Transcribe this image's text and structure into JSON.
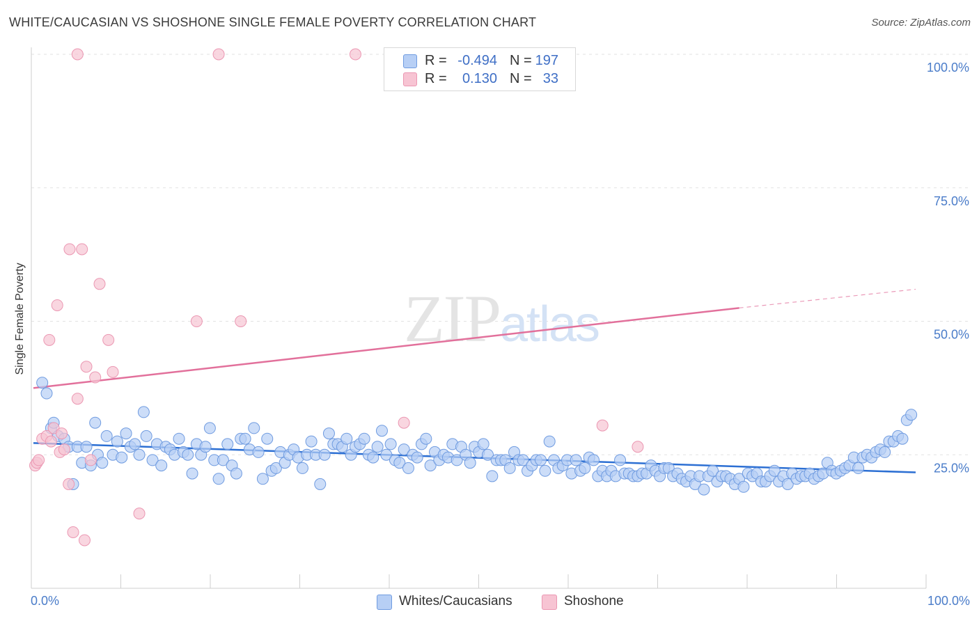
{
  "chart_data": {
    "type": "scatter",
    "title": "WHITE/CAUCASIAN VS SHOSHONE SINGLE FEMALE POVERTY CORRELATION CHART",
    "source": "Source: ZipAtlas.com",
    "xlabel": "",
    "ylabel": "Single Female Poverty",
    "xlim": [
      0,
      100
    ],
    "ylim": [
      0,
      100
    ],
    "x_tick_labels": [
      "0.0%",
      "100.0%"
    ],
    "y_ticks": [
      25,
      50,
      75,
      100
    ],
    "y_tick_labels": [
      "25.0%",
      "50.0%",
      "75.0%",
      "100.0%"
    ],
    "watermark": "ZIPatlas",
    "legend": [
      {
        "name": "Whites/Caucasians",
        "r_label": "R =",
        "r_value": "-0.494",
        "n_label": "N =",
        "n_value": "197"
      },
      {
        "name": "Shoshone",
        "r_label": "R =",
        "r_value": "0.130",
        "n_label": "N =",
        "n_value": "33"
      }
    ],
    "colors": {
      "blue_fill": "#b7cff5",
      "blue_stroke": "#6f9be0",
      "blue_line": "#2c6fd3",
      "pink_fill": "#f7c4d3",
      "pink_stroke": "#eb97b2",
      "pink_line": "#e2709b",
      "tick_text": "#4a7cc9",
      "grid": "#e2e2e2"
    },
    "series": [
      {
        "name": "Whites/Caucasians",
        "trend": {
          "x0": 0,
          "y0": 27.2,
          "x1": 100,
          "y1": 21.7
        },
        "points": [
          [
            1,
            38.5
          ],
          [
            1.5,
            36.5
          ],
          [
            2,
            30
          ],
          [
            2.3,
            31
          ],
          [
            2.8,
            28.5
          ],
          [
            3.5,
            28
          ],
          [
            4,
            26.5
          ],
          [
            4.5,
            19.5
          ],
          [
            5,
            26.5
          ],
          [
            5.5,
            23.5
          ],
          [
            6,
            26.5
          ],
          [
            6.5,
            23
          ],
          [
            7,
            31
          ],
          [
            7.3,
            25
          ],
          [
            7.8,
            23.5
          ],
          [
            8.3,
            28.5
          ],
          [
            9,
            25
          ],
          [
            9.5,
            27.5
          ],
          [
            10,
            24.5
          ],
          [
            10.5,
            29
          ],
          [
            11,
            26.5
          ],
          [
            11.5,
            27
          ],
          [
            12,
            25
          ],
          [
            12.5,
            33
          ],
          [
            12.8,
            28.5
          ],
          [
            13.5,
            24
          ],
          [
            14,
            27
          ],
          [
            14.5,
            23
          ],
          [
            15,
            26.5
          ],
          [
            15.5,
            26
          ],
          [
            16,
            25
          ],
          [
            16.5,
            28
          ],
          [
            17,
            25.5
          ],
          [
            17.5,
            25
          ],
          [
            18,
            21.5
          ],
          [
            18.5,
            27
          ],
          [
            19,
            25
          ],
          [
            19.5,
            26.5
          ],
          [
            20,
            30
          ],
          [
            20.5,
            24
          ],
          [
            21,
            20.5
          ],
          [
            21.5,
            24
          ],
          [
            22,
            27
          ],
          [
            22.5,
            23
          ],
          [
            23,
            21.5
          ],
          [
            23.5,
            28
          ],
          [
            24,
            28
          ],
          [
            24.5,
            26
          ],
          [
            25,
            30
          ],
          [
            25.5,
            25.5
          ],
          [
            26,
            20.5
          ],
          [
            26.5,
            28
          ],
          [
            27,
            22
          ],
          [
            27.5,
            22.5
          ],
          [
            28,
            25.5
          ],
          [
            28.5,
            23.5
          ],
          [
            29,
            25
          ],
          [
            29.5,
            26
          ],
          [
            30,
            24.5
          ],
          [
            30.5,
            22.5
          ],
          [
            31,
            25
          ],
          [
            31.5,
            27.5
          ],
          [
            32,
            25
          ],
          [
            32.5,
            19.5
          ],
          [
            33,
            25
          ],
          [
            33.5,
            29
          ],
          [
            34,
            27
          ],
          [
            34.5,
            27
          ],
          [
            35,
            26.5
          ],
          [
            35.5,
            28
          ],
          [
            36,
            25
          ],
          [
            36.5,
            26.5
          ],
          [
            37,
            27
          ],
          [
            37.5,
            28
          ],
          [
            38,
            25
          ],
          [
            38.5,
            24.5
          ],
          [
            39,
            26.5
          ],
          [
            39.5,
            29.5
          ],
          [
            40,
            25
          ],
          [
            40.5,
            27
          ],
          [
            41,
            24
          ],
          [
            41.5,
            23.5
          ],
          [
            42,
            26
          ],
          [
            42.5,
            22.5
          ],
          [
            43,
            25
          ],
          [
            43.5,
            24.5
          ],
          [
            44,
            27
          ],
          [
            44.5,
            28
          ],
          [
            45,
            23
          ],
          [
            45.5,
            25.5
          ],
          [
            46,
            24
          ],
          [
            46.5,
            25
          ],
          [
            47,
            24.5
          ],
          [
            47.5,
            27
          ],
          [
            48,
            24
          ],
          [
            48.5,
            26.5
          ],
          [
            49,
            25
          ],
          [
            49.5,
            23.5
          ],
          [
            50,
            26.5
          ],
          [
            50.5,
            25.5
          ],
          [
            51,
            27
          ],
          [
            51.5,
            25
          ],
          [
            52,
            21
          ],
          [
            52.5,
            24
          ],
          [
            53,
            24
          ],
          [
            53.5,
            24
          ],
          [
            54,
            22.5
          ],
          [
            54.5,
            25.5
          ],
          [
            55,
            24
          ],
          [
            55.5,
            24
          ],
          [
            56,
            22
          ],
          [
            56.5,
            23
          ],
          [
            57,
            24
          ],
          [
            57.5,
            24
          ],
          [
            58,
            22
          ],
          [
            58.5,
            27.5
          ],
          [
            59,
            24
          ],
          [
            59.5,
            22.5
          ],
          [
            60,
            23
          ],
          [
            60.5,
            24
          ],
          [
            61,
            21.5
          ],
          [
            61.5,
            24
          ],
          [
            62,
            22
          ],
          [
            62.5,
            22.5
          ],
          [
            63,
            24.5
          ],
          [
            63.5,
            24
          ],
          [
            64,
            21
          ],
          [
            64.5,
            22
          ],
          [
            65,
            21
          ],
          [
            65.5,
            22
          ],
          [
            66,
            21
          ],
          [
            66.5,
            24
          ],
          [
            67,
            21.5
          ],
          [
            67.5,
            21.5
          ],
          [
            68,
            21
          ],
          [
            68.5,
            21
          ],
          [
            69,
            21.5
          ],
          [
            69.5,
            21.5
          ],
          [
            70,
            23
          ],
          [
            70.5,
            22
          ],
          [
            71,
            21
          ],
          [
            71.5,
            22.5
          ],
          [
            72,
            22.5
          ],
          [
            72.5,
            21
          ],
          [
            73,
            21.5
          ],
          [
            73.5,
            20.5
          ],
          [
            74,
            20
          ],
          [
            74.5,
            21
          ],
          [
            75,
            19.5
          ],
          [
            75.5,
            21
          ],
          [
            76,
            18.5
          ],
          [
            76.5,
            21
          ],
          [
            77,
            22
          ],
          [
            77.5,
            20
          ],
          [
            78,
            21
          ],
          [
            78.5,
            21
          ],
          [
            79,
            20.5
          ],
          [
            79.5,
            19.5
          ],
          [
            80,
            20.5
          ],
          [
            80.5,
            19
          ],
          [
            81,
            21.5
          ],
          [
            81.5,
            21
          ],
          [
            82,
            21.5
          ],
          [
            82.5,
            20
          ],
          [
            83,
            20
          ],
          [
            83.5,
            21
          ],
          [
            84,
            22
          ],
          [
            84.5,
            20
          ],
          [
            85,
            21
          ],
          [
            85.5,
            19.5
          ],
          [
            86,
            21.5
          ],
          [
            86.5,
            20.5
          ],
          [
            87,
            21
          ],
          [
            87.5,
            21
          ],
          [
            88,
            21.5
          ],
          [
            88.5,
            20.5
          ],
          [
            89,
            21
          ],
          [
            89.5,
            21.5
          ],
          [
            90,
            23.5
          ],
          [
            90.5,
            22
          ],
          [
            91,
            21.5
          ],
          [
            91.5,
            22
          ],
          [
            92,
            22.5
          ],
          [
            92.5,
            23
          ],
          [
            93,
            24.5
          ],
          [
            93.5,
            22.5
          ],
          [
            94,
            24.5
          ],
          [
            94.5,
            25
          ],
          [
            95,
            24.5
          ],
          [
            95.5,
            25.5
          ],
          [
            96,
            26
          ],
          [
            96.5,
            25.5
          ],
          [
            97,
            27.5
          ],
          [
            97.5,
            27.5
          ],
          [
            98,
            28.5
          ],
          [
            98.5,
            28
          ],
          [
            99,
            31.5
          ],
          [
            99.5,
            32.5
          ]
        ]
      },
      {
        "name": "Shoshone",
        "trend": {
          "x0": 0,
          "y0": 37.5,
          "x1": 80,
          "y1": 52.5,
          "dash_to_x": 100,
          "dash_to_y": 56
        },
        "points": [
          [
            0.2,
            23
          ],
          [
            0.4,
            23.5
          ],
          [
            0.6,
            24
          ],
          [
            1,
            28
          ],
          [
            1.5,
            28.5
          ],
          [
            2,
            27.5
          ],
          [
            2.3,
            30
          ],
          [
            3,
            25.5
          ],
          [
            3.2,
            29
          ],
          [
            3.5,
            26
          ],
          [
            2.7,
            53
          ],
          [
            1.8,
            46.5
          ],
          [
            4,
            19.5
          ],
          [
            4.5,
            10.5
          ],
          [
            5,
            35.5
          ],
          [
            5.5,
            63.5
          ],
          [
            4.1,
            63.5
          ],
          [
            6,
            41.5
          ],
          [
            6.5,
            24
          ],
          [
            7,
            39.5
          ],
          [
            7.5,
            57
          ],
          [
            8.5,
            46.5
          ],
          [
            9,
            40.5
          ],
          [
            12,
            14
          ],
          [
            5.8,
            9
          ],
          [
            18.5,
            50
          ],
          [
            23.5,
            50
          ],
          [
            5,
            100
          ],
          [
            21,
            100
          ],
          [
            36.5,
            100
          ],
          [
            42,
            31
          ],
          [
            64.5,
            30.5
          ],
          [
            68.5,
            26.5
          ]
        ]
      }
    ]
  }
}
